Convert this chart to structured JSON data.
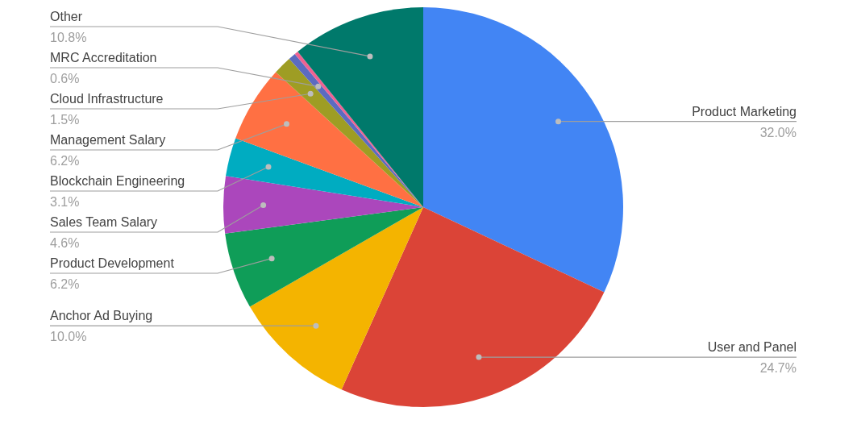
{
  "chart_data": {
    "type": "pie",
    "categories": [
      "Product Marketing",
      "User and Panel",
      "Anchor Ad Buying",
      "Product Development",
      "Sales Team Salary",
      "Blockchain Engineering",
      "Management Salary",
      "Cloud Infrastructure",
      "MRC Accreditation",
      null,
      "Other"
    ],
    "values": [
      32.0,
      24.7,
      10.0,
      6.2,
      4.6,
      3.1,
      6.2,
      1.5,
      0.6,
      0.3,
      10.8
    ],
    "value_labels": [
      "32.0%",
      "24.7%",
      "10.0%",
      "6.2%",
      "4.6%",
      "3.1%",
      "6.2%",
      "1.5%",
      "0.6%",
      null,
      "10.8%"
    ],
    "colors": [
      "#4285f4",
      "#db4437",
      "#f4b400",
      "#0f9d58",
      "#ab47bc",
      "#00acc1",
      "#ff7043",
      "#9e9d24",
      "#5c6bc0",
      "#f06292",
      "#00796b"
    ],
    "legend": false
  }
}
